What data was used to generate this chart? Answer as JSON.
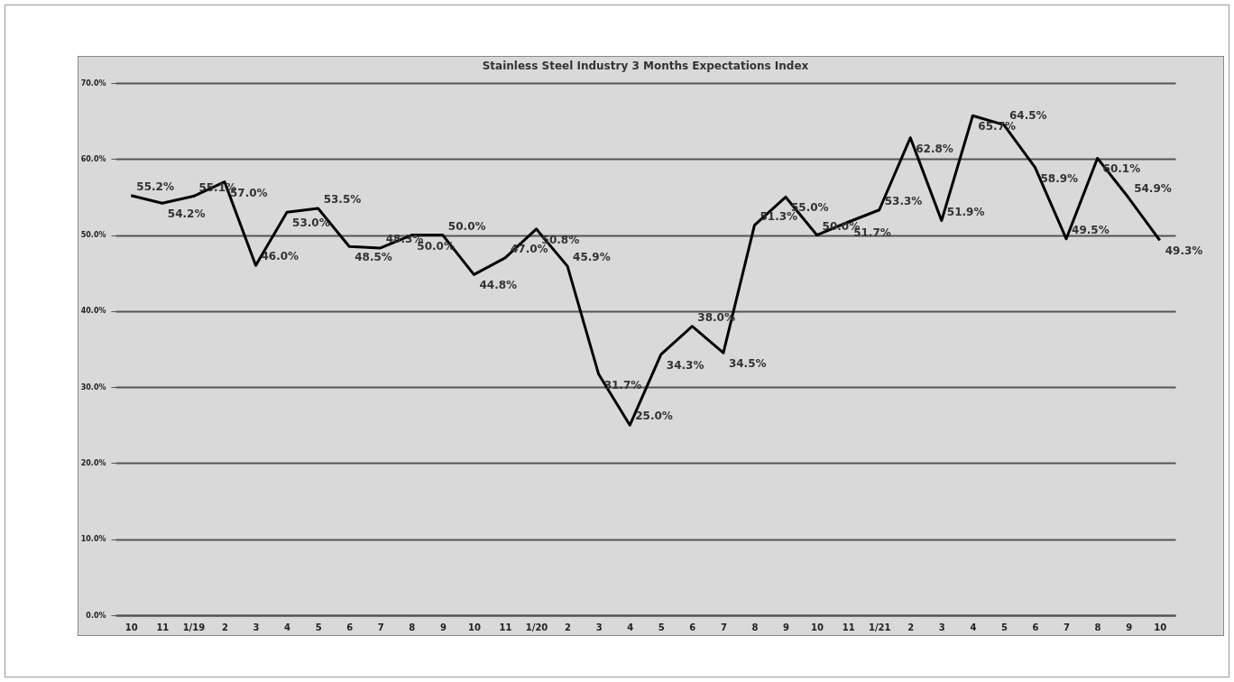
{
  "chart_data": {
    "type": "line",
    "title": "Stainless Steel Industry 3 Months Expectations Index",
    "categories": [
      "10",
      "11",
      "1/19",
      "2",
      "3",
      "4",
      "5",
      "6",
      "7",
      "8",
      "9",
      "10",
      "11",
      "1/20",
      "2",
      "3",
      "4",
      "5",
      "6",
      "7",
      "8",
      "9",
      "10",
      "11",
      "1/21",
      "2",
      "3",
      "4",
      "5",
      "6",
      "7",
      "8",
      "9",
      "10"
    ],
    "series": [
      {
        "color": "#000000",
        "values": [
          55.2,
          54.2,
          55.1,
          57.0,
          46.0,
          53.0,
          53.5,
          48.5,
          48.3,
          50.0,
          50.0,
          44.8,
          47.0,
          50.8,
          45.9,
          31.7,
          25.0,
          34.3,
          38.0,
          34.5,
          51.3,
          55.0,
          50.0,
          51.7,
          53.3,
          62.8,
          51.9,
          65.7,
          64.5,
          58.9,
          49.5,
          60.1,
          54.9,
          49.3
        ],
        "value_labels": [
          "55.2%",
          "54.2%",
          "55.1%",
          "57.0%",
          "46.0%",
          "53.0%",
          "53.5%",
          "48.5%",
          "48.3%",
          "50.0%",
          "50.0%",
          "44.8%",
          "47.0%",
          "50.8%",
          "45.9%",
          "31.7%",
          "25.0%",
          "34.3%",
          "38.0%",
          "34.5%",
          "51.3%",
          "55.0%",
          "50.0%",
          "51.7%",
          "53.3%",
          "62.8%",
          "51.9%",
          "65.7%",
          "64.5%",
          "58.9%",
          "49.5%",
          "60.1%",
          "54.9%",
          "49.3%"
        ]
      }
    ],
    "ylim": [
      0,
      70
    ],
    "yticks": [
      {
        "value": 0,
        "label": "0.0%"
      },
      {
        "value": 10,
        "label": "10.0%"
      },
      {
        "value": 20,
        "label": "20.0%"
      },
      {
        "value": 30,
        "label": "30.0%"
      },
      {
        "value": 40,
        "label": "40.0%"
      },
      {
        "value": 50,
        "label": "50.0%"
      },
      {
        "value": 60,
        "label": "60.0%"
      },
      {
        "value": 70,
        "label": "70.0%"
      }
    ],
    "grid": "y",
    "legend": false,
    "marker": "none",
    "line_style": "solid"
  }
}
